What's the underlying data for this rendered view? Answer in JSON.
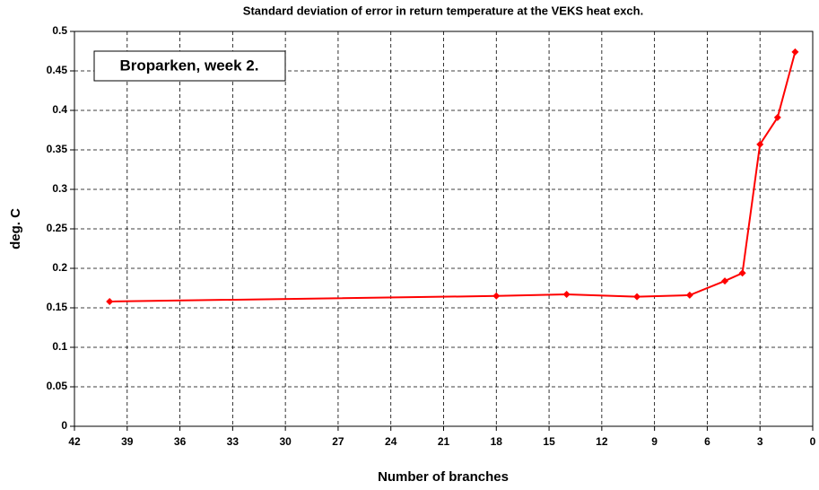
{
  "chart_data": {
    "type": "line",
    "title": "Standard deviation of error in return temperature at the VEKS heat exch.",
    "xlabel": "Number of branches",
    "ylabel": "deg. C",
    "annotation": "Broparken, week 2.",
    "x": [
      40,
      18,
      14,
      10,
      7,
      5,
      4,
      3,
      2,
      1
    ],
    "series": [
      {
        "color": "#ff0000",
        "values": [
          0.158,
          0.165,
          0.167,
          0.164,
          0.166,
          0.184,
          0.194,
          0.357,
          0.391,
          0.474
        ]
      }
    ],
    "xlim": [
      42,
      0
    ],
    "xticks": [
      42,
      39,
      36,
      33,
      30,
      27,
      24,
      21,
      18,
      15,
      12,
      9,
      6,
      3,
      0
    ],
    "ylim": [
      0,
      0.5
    ],
    "yticks": [
      0,
      0.05,
      0.1,
      0.15,
      0.2,
      0.25,
      0.3,
      0.35,
      0.4,
      0.45,
      0.5
    ],
    "grid": true
  }
}
